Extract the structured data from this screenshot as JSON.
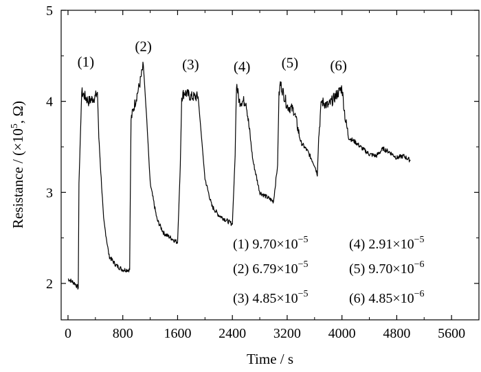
{
  "chart_data": {
    "type": "line",
    "title": "",
    "xlabel": "Time / s",
    "ylabel_main": "Resistance / (×10",
    "ylabel_exp": "5",
    "ylabel_tail": ", Ω)",
    "xlim": [
      -100,
      6000
    ],
    "ylim": [
      1.6,
      5.0
    ],
    "x_ticks": [
      0,
      800,
      1600,
      2400,
      3200,
      4000,
      4800,
      5600
    ],
    "x_tick_labels": [
      "0",
      "800",
      "1600",
      "2400",
      "3200",
      "4000",
      "4800",
      "5600"
    ],
    "y_ticks": [
      2,
      3,
      4,
      5
    ],
    "y_tick_labels": [
      "2",
      "3",
      "4",
      "5"
    ],
    "grid": false,
    "series": [
      {
        "x": [
          0,
          100,
          150,
          160,
          200,
          300,
          400,
          430,
          450,
          520,
          600,
          700,
          800,
          900,
          920,
          950,
          1050,
          1100,
          1150,
          1200,
          1300,
          1400,
          1500,
          1600,
          1640,
          1660,
          1700,
          1800,
          1900,
          1950,
          2000,
          2100,
          2200,
          2300,
          2400,
          2440,
          2460,
          2500,
          2600,
          2700,
          2800,
          2900,
          3000,
          3060,
          3080,
          3100,
          3200,
          3300,
          3400,
          3500,
          3600,
          3640,
          3660,
          3700,
          3800,
          3900,
          4000,
          4050,
          4100,
          4200,
          4300,
          4400,
          4500,
          4600,
          4700,
          4800,
          4900,
          5000
        ],
        "y": [
          2.05,
          2.0,
          1.95,
          3.1,
          4.1,
          4.0,
          4.05,
          4.1,
          3.6,
          2.7,
          2.3,
          2.2,
          2.15,
          2.15,
          3.8,
          3.9,
          4.2,
          4.4,
          3.8,
          3.1,
          2.7,
          2.55,
          2.5,
          2.45,
          3.3,
          4.05,
          4.1,
          4.05,
          4.05,
          3.6,
          3.15,
          2.85,
          2.75,
          2.7,
          2.65,
          3.4,
          4.2,
          4.0,
          4.0,
          3.35,
          3.0,
          2.95,
          2.9,
          3.3,
          4.05,
          4.2,
          3.95,
          3.9,
          3.55,
          3.45,
          3.3,
          3.2,
          3.6,
          4.0,
          3.95,
          4.05,
          4.15,
          3.8,
          3.6,
          3.55,
          3.48,
          3.42,
          3.4,
          3.48,
          3.44,
          3.38,
          3.4,
          3.35
        ]
      }
    ],
    "peak_labels": [
      {
        "text": "(1)",
        "x": 260,
        "y": 4.38
      },
      {
        "text": "(2)",
        "x": 1100,
        "y": 4.55
      },
      {
        "text": "(3)",
        "x": 1790,
        "y": 4.35
      },
      {
        "text": "(4)",
        "x": 2540,
        "y": 4.33
      },
      {
        "text": "(5)",
        "x": 3240,
        "y": 4.37
      },
      {
        "text": "(6)",
        "x": 3950,
        "y": 4.34
      }
    ],
    "legend": [
      {
        "label": "(1) 9.70×10",
        "exp": "−5"
      },
      {
        "label": "(4) 2.91×10",
        "exp": "−5"
      },
      {
        "label": "(2) 6.79×10",
        "exp": "−5"
      },
      {
        "label": "(5) 9.70×10",
        "exp": "−6"
      },
      {
        "label": "(3) 4.85×10",
        "exp": "−5"
      },
      {
        "label": "(6) 4.85×10",
        "exp": "−6"
      }
    ],
    "legend_placement": "bottom-right"
  }
}
